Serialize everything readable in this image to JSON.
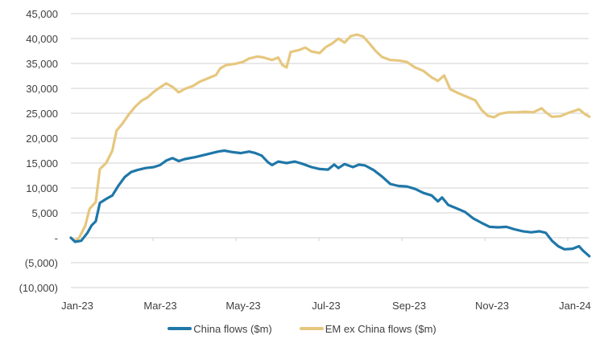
{
  "chart_data": {
    "type": "line",
    "title": "",
    "xlabel": "",
    "ylabel": "",
    "ylim": [
      -10000,
      45000
    ],
    "yticks": [
      {
        "value": 45000,
        "label": "45,000"
      },
      {
        "value": 40000,
        "label": "40,000"
      },
      {
        "value": 35000,
        "label": "35,000"
      },
      {
        "value": 30000,
        "label": "30,000"
      },
      {
        "value": 25000,
        "label": "25,000"
      },
      {
        "value": 20000,
        "label": "20,000"
      },
      {
        "value": 15000,
        "label": "15,000"
      },
      {
        "value": 10000,
        "label": "10,000"
      },
      {
        "value": 5000,
        "label": "5,000"
      },
      {
        "value": 0,
        "label": "-"
      },
      {
        "value": -5000,
        "label": "(5,000)"
      },
      {
        "value": -10000,
        "label": "(10,000)"
      }
    ],
    "xticks": [
      "Jan-23",
      "Mar-23",
      "May-23",
      "Jul-23",
      "Sep-23",
      "Nov-23",
      "Jan-24"
    ],
    "grid": true,
    "legend_position": "bottom",
    "x_units": "months since start of Jan-23",
    "series": [
      {
        "name": "China flows ($m)",
        "color": "#1F77A8",
        "points": [
          [
            0.0,
            0
          ],
          [
            0.1,
            -800
          ],
          [
            0.25,
            -600
          ],
          [
            0.4,
            1000
          ],
          [
            0.5,
            2500
          ],
          [
            0.6,
            3300
          ],
          [
            0.7,
            7000
          ],
          [
            0.85,
            7800
          ],
          [
            1.0,
            8500
          ],
          [
            1.15,
            10500
          ],
          [
            1.3,
            12200
          ],
          [
            1.45,
            13200
          ],
          [
            1.6,
            13600
          ],
          [
            1.8,
            14000
          ],
          [
            2.0,
            14200
          ],
          [
            2.15,
            14600
          ],
          [
            2.3,
            15500
          ],
          [
            2.45,
            16000
          ],
          [
            2.6,
            15400
          ],
          [
            2.75,
            15800
          ],
          [
            3.0,
            16200
          ],
          [
            3.2,
            16600
          ],
          [
            3.4,
            17000
          ],
          [
            3.55,
            17300
          ],
          [
            3.7,
            17500
          ],
          [
            3.9,
            17200
          ],
          [
            4.1,
            17000
          ],
          [
            4.3,
            17300
          ],
          [
            4.45,
            17000
          ],
          [
            4.6,
            16500
          ],
          [
            4.75,
            15200
          ],
          [
            4.85,
            14600
          ],
          [
            5.0,
            15300
          ],
          [
            5.2,
            15000
          ],
          [
            5.4,
            15300
          ],
          [
            5.6,
            14800
          ],
          [
            5.8,
            14200
          ],
          [
            6.0,
            13800
          ],
          [
            6.2,
            13700
          ],
          [
            6.35,
            14700
          ],
          [
            6.45,
            14000
          ],
          [
            6.6,
            14800
          ],
          [
            6.8,
            14200
          ],
          [
            6.95,
            14700
          ],
          [
            7.1,
            14500
          ],
          [
            7.3,
            13600
          ],
          [
            7.5,
            12300
          ],
          [
            7.7,
            10800
          ],
          [
            7.9,
            10400
          ],
          [
            8.1,
            10300
          ],
          [
            8.3,
            9800
          ],
          [
            8.5,
            9000
          ],
          [
            8.7,
            8500
          ],
          [
            8.85,
            7300
          ],
          [
            8.95,
            8100
          ],
          [
            9.1,
            6600
          ],
          [
            9.3,
            5900
          ],
          [
            9.5,
            5200
          ],
          [
            9.7,
            3900
          ],
          [
            9.9,
            3000
          ],
          [
            10.1,
            2200
          ],
          [
            10.3,
            2100
          ],
          [
            10.5,
            2200
          ],
          [
            10.7,
            1700
          ],
          [
            10.9,
            1300
          ],
          [
            11.1,
            1100
          ],
          [
            11.3,
            1300
          ],
          [
            11.45,
            1000
          ],
          [
            11.6,
            -600
          ],
          [
            11.75,
            -1700
          ],
          [
            11.9,
            -2300
          ],
          [
            12.1,
            -2200
          ],
          [
            12.25,
            -1700
          ],
          [
            12.35,
            -2600
          ],
          [
            12.5,
            -3700
          ]
        ]
      },
      {
        "name": "EM ex China flows ($m)",
        "color": "#E6C77E",
        "points": [
          [
            0.0,
            0
          ],
          [
            0.1,
            -600
          ],
          [
            0.2,
            0
          ],
          [
            0.35,
            2500
          ],
          [
            0.45,
            5800
          ],
          [
            0.6,
            7200
          ],
          [
            0.7,
            13800
          ],
          [
            0.85,
            15000
          ],
          [
            1.0,
            17500
          ],
          [
            1.1,
            21500
          ],
          [
            1.25,
            23000
          ],
          [
            1.4,
            24800
          ],
          [
            1.55,
            26300
          ],
          [
            1.7,
            27500
          ],
          [
            1.85,
            28200
          ],
          [
            2.0,
            29300
          ],
          [
            2.15,
            30200
          ],
          [
            2.3,
            31000
          ],
          [
            2.45,
            30300
          ],
          [
            2.6,
            29200
          ],
          [
            2.75,
            29900
          ],
          [
            2.95,
            30500
          ],
          [
            3.1,
            31300
          ],
          [
            3.3,
            32000
          ],
          [
            3.5,
            32700
          ],
          [
            3.6,
            34000
          ],
          [
            3.75,
            34700
          ],
          [
            3.95,
            34900
          ],
          [
            4.15,
            35300
          ],
          [
            4.3,
            36000
          ],
          [
            4.5,
            36400
          ],
          [
            4.65,
            36200
          ],
          [
            4.85,
            35700
          ],
          [
            5.0,
            36200
          ],
          [
            5.1,
            34700
          ],
          [
            5.2,
            34200
          ],
          [
            5.3,
            37300
          ],
          [
            5.5,
            37700
          ],
          [
            5.65,
            38200
          ],
          [
            5.8,
            37400
          ],
          [
            6.0,
            37100
          ],
          [
            6.15,
            38300
          ],
          [
            6.3,
            39000
          ],
          [
            6.45,
            40000
          ],
          [
            6.6,
            39200
          ],
          [
            6.75,
            40500
          ],
          [
            6.9,
            40800
          ],
          [
            7.05,
            40400
          ],
          [
            7.2,
            39000
          ],
          [
            7.35,
            37500
          ],
          [
            7.5,
            36300
          ],
          [
            7.7,
            35700
          ],
          [
            7.9,
            35600
          ],
          [
            8.1,
            35300
          ],
          [
            8.3,
            34200
          ],
          [
            8.5,
            33500
          ],
          [
            8.7,
            32200
          ],
          [
            8.85,
            31500
          ],
          [
            9.0,
            32600
          ],
          [
            9.15,
            29800
          ],
          [
            9.35,
            29000
          ],
          [
            9.55,
            28300
          ],
          [
            9.75,
            27600
          ],
          [
            9.9,
            25700
          ],
          [
            10.05,
            24500
          ],
          [
            10.2,
            24200
          ],
          [
            10.35,
            24900
          ],
          [
            10.55,
            25200
          ],
          [
            10.75,
            25200
          ],
          [
            10.95,
            25300
          ],
          [
            11.15,
            25200
          ],
          [
            11.35,
            26000
          ],
          [
            11.45,
            25200
          ],
          [
            11.6,
            24300
          ],
          [
            11.8,
            24400
          ],
          [
            12.0,
            25100
          ],
          [
            12.15,
            25500
          ],
          [
            12.25,
            25800
          ],
          [
            12.4,
            24800
          ],
          [
            12.5,
            24300
          ]
        ]
      }
    ]
  },
  "legend": {
    "items": [
      {
        "label": "China flows ($m)",
        "color": "#1F77A8"
      },
      {
        "label": "EM ex China flows ($m)",
        "color": "#E6C77E"
      }
    ]
  }
}
